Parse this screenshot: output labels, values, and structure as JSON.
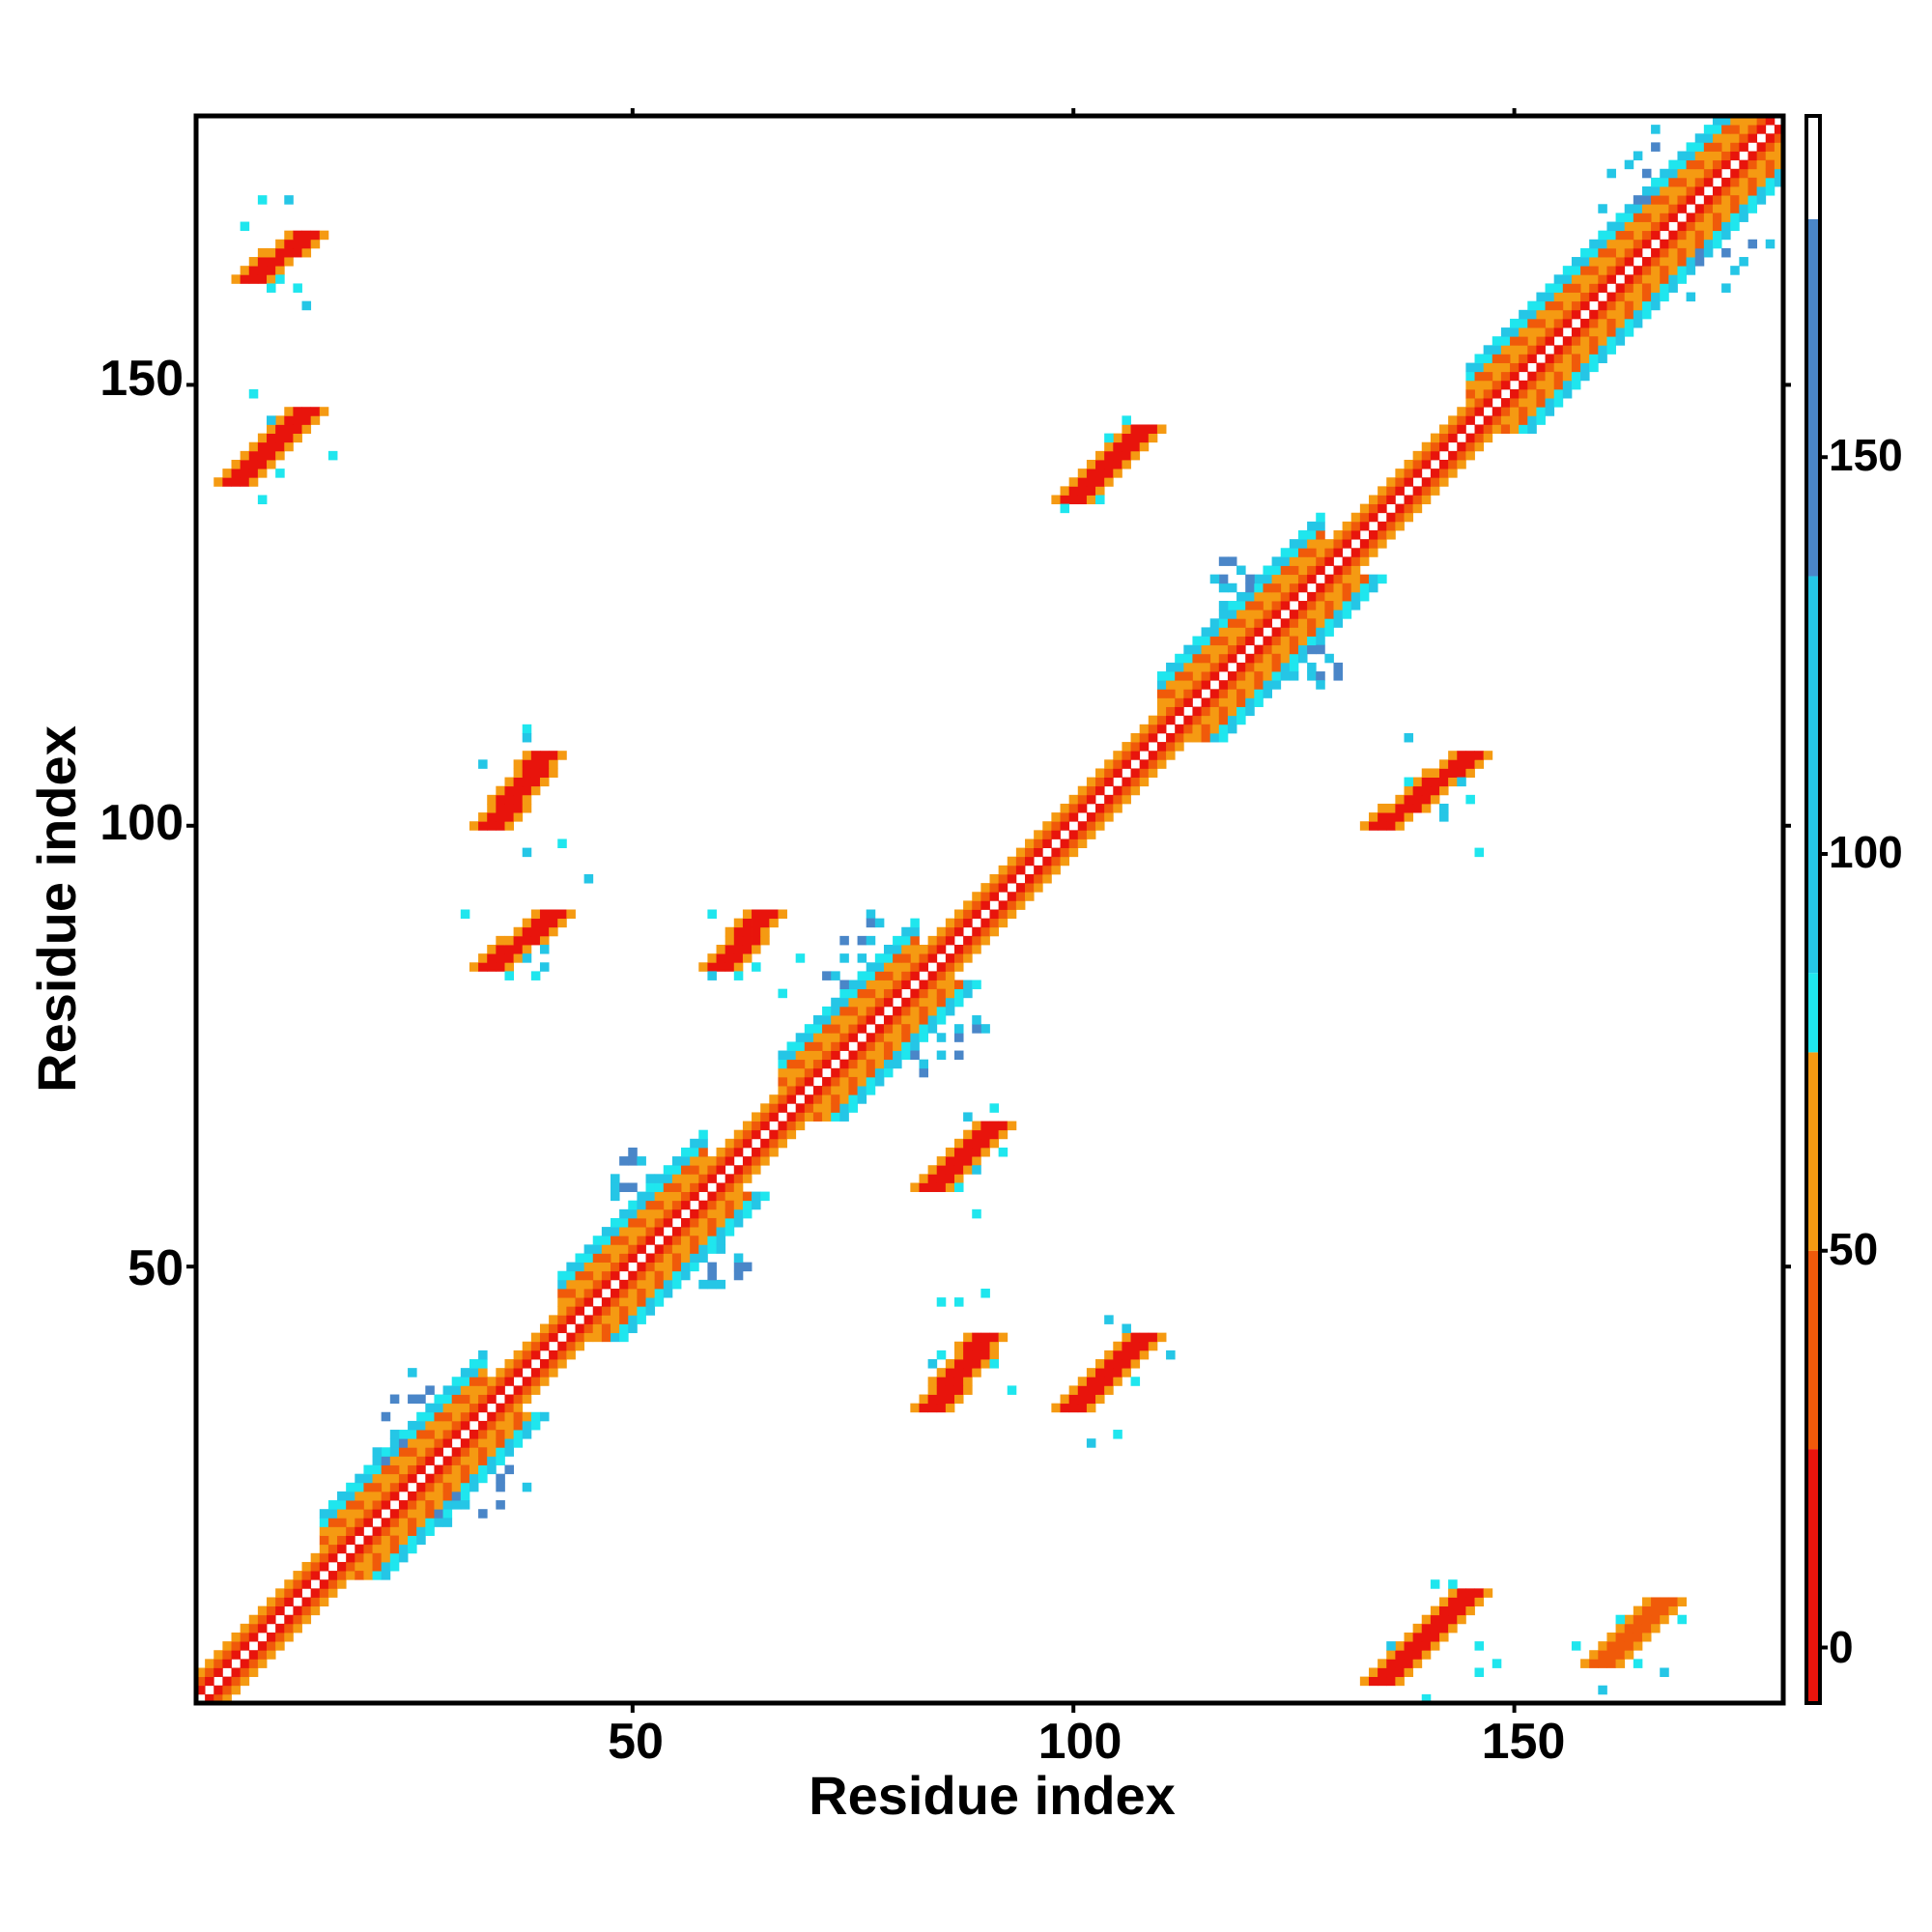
{
  "chart_data": {
    "type": "heatmap",
    "title": "",
    "xlabel": "Residue index",
    "ylabel": "Residue index",
    "xlim": [
      1,
      180
    ],
    "ylim": [
      1,
      180
    ],
    "x_ticks": [
      50,
      100,
      150
    ],
    "y_ticks": [
      50,
      100,
      150
    ],
    "grid": false,
    "colorbar": {
      "ticks": [
        0,
        50,
        100,
        150
      ],
      "range": [
        -7,
        193
      ],
      "bands": [
        {
          "from": -7,
          "to": 25,
          "color": "#e8140c"
        },
        {
          "from": 25,
          "to": 50,
          "color": "#f05a0a"
        },
        {
          "from": 50,
          "to": 75,
          "color": "#f59a12"
        },
        {
          "from": 75,
          "to": 85,
          "color": "#1fe6ee"
        },
        {
          "from": 85,
          "to": 135,
          "color": "#25c6e6"
        },
        {
          "from": 135,
          "to": 180,
          "color": "#4a86c8"
        },
        {
          "from": 180,
          "to": 193,
          "color": "#ffffff"
        }
      ]
    },
    "pattern": "contact map with 'X' checker pattern along the main diagonal; symmetric off-diagonal blocks mark beta-sheet pairings",
    "features": {
      "diagonal_helix_regions": [
        [
          15,
          33
        ],
        [
          42,
          58
        ],
        [
          67,
          82
        ],
        [
          110,
          128
        ],
        [
          145,
          180
        ]
      ],
      "beta_pairs": [
        {
          "x": [
            5,
            13
          ],
          "y": [
            139,
            147
          ],
          "color_value": 10
        },
        {
          "x": [
            7,
            13
          ],
          "y": [
            162,
            167
          ],
          "color_value": 20
        },
        {
          "x": [
            34,
            40
          ],
          "y": [
            100,
            108
          ],
          "color_value": 10
        },
        {
          "x": [
            34,
            41
          ],
          "y": [
            84,
            90
          ],
          "color_value": 15
        },
        {
          "x": [
            60,
            65
          ],
          "y": [
            84,
            90
          ],
          "color_value": 10
        },
        {
          "x": [
            84,
            91
          ],
          "y": [
            59,
            66
          ],
          "color_value": 10
        },
        {
          "x": [
            84,
            90
          ],
          "y": [
            34,
            42
          ],
          "color_value": 15
        },
        {
          "x": [
            100,
            108
          ],
          "y": [
            34,
            42
          ],
          "color_value": 10
        },
        {
          "x": [
            100,
            108
          ],
          "y": [
            137,
            145
          ],
          "color_value": 10
        },
        {
          "x": [
            135,
            145
          ],
          "y": [
            3,
            13
          ],
          "color_value": 10
        },
        {
          "x": [
            135,
            145
          ],
          "y": [
            100,
            108
          ],
          "color_value": 10
        },
        {
          "x": [
            160,
            167
          ],
          "y": [
            5,
            12
          ],
          "color_value": 40
        }
      ]
    }
  }
}
